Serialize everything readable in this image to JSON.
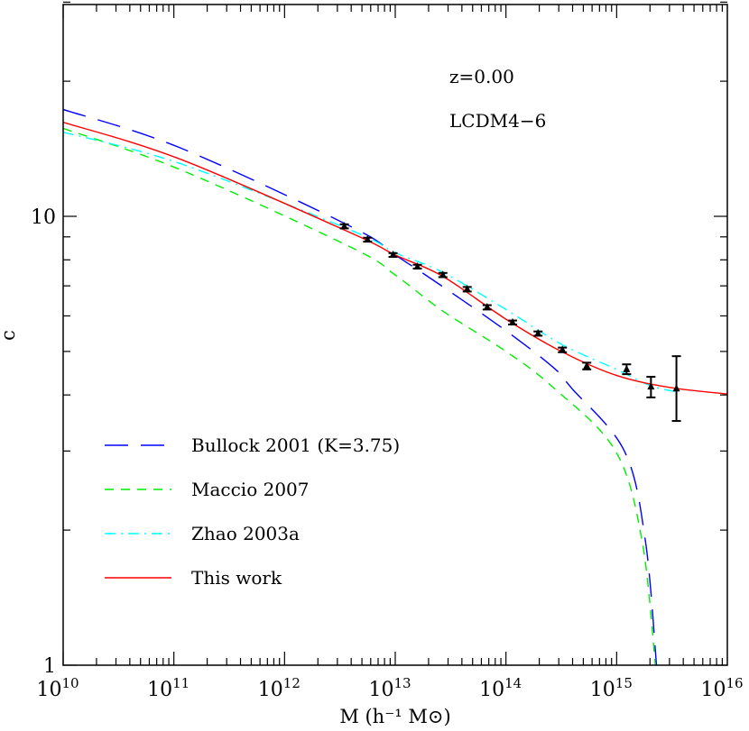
{
  "chart_data": {
    "type": "line",
    "title": "",
    "xlabel": "M (h⁻¹ M⊙)",
    "ylabel": "c",
    "xscale": "log",
    "yscale": "log",
    "xlim": [
      10000000000.0,
      1e+16
    ],
    "ylim": [
      1,
      30
    ],
    "grid": false,
    "legend_position": "bottom-left",
    "x_tick_labels": [
      {
        "value": 10000000000.0,
        "base": "10",
        "exp": "10"
      },
      {
        "value": 100000000000.0,
        "base": "10",
        "exp": "11"
      },
      {
        "value": 1000000000000.0,
        "base": "10",
        "exp": "12"
      },
      {
        "value": 10000000000000.0,
        "base": "10",
        "exp": "13"
      },
      {
        "value": 100000000000000.0,
        "base": "10",
        "exp": "14"
      },
      {
        "value": 1000000000000000.0,
        "base": "10",
        "exp": "15"
      },
      {
        "value": 1e+16,
        "base": "10",
        "exp": "16"
      }
    ],
    "y_tick_labels": [
      {
        "value": 1,
        "label": "1"
      },
      {
        "value": 10,
        "label": "10"
      }
    ],
    "annotations": [
      "z=0.00",
      "LCDM4−6"
    ],
    "series": [
      {
        "name": "Bullock 2001 (K=3.75)",
        "color": "#0000ff",
        "style": "long-dash",
        "log10_M": [
          10.0,
          11.06,
          12.61,
          13.0,
          13.43,
          14.0,
          14.43,
          14.59,
          15.07,
          15.26,
          15.36
        ],
        "c": [
          17.3,
          14.2,
          9.46,
          8.2,
          6.97,
          5.56,
          4.6,
          4.15,
          3.0,
          1.89,
          1.0
        ]
      },
      {
        "name": "Maccio 2007",
        "color": "#00ee00",
        "style": "short-dash",
        "log10_M": [
          10.0,
          11.06,
          12.61,
          13.0,
          13.43,
          14.0,
          14.43,
          14.99,
          15.23,
          15.35
        ],
        "c": [
          15.7,
          12.7,
          8.51,
          7.4,
          6.15,
          5.0,
          4.15,
          3.0,
          1.89,
          1.0
        ]
      },
      {
        "name": "Zhao 2003a",
        "color": "#00ffff",
        "style": "dash-dot",
        "log10_M": [
          10.0,
          11.06,
          12.61,
          13.0,
          13.43,
          14.0,
          14.5,
          15.0,
          15.3,
          15.55
        ],
        "c": [
          15.4,
          13.1,
          9.29,
          8.3,
          7.5,
          6.2,
          5.19,
          4.56,
          4.2,
          4.06
        ]
      },
      {
        "name": "This work",
        "color": "#ff0000",
        "style": "solid",
        "log10_M": [
          10.0,
          11.06,
          12.61,
          13.0,
          13.43,
          14.0,
          14.5,
          15.0,
          15.5,
          16.0
        ],
        "c": [
          16.2,
          13.4,
          9.16,
          8.2,
          7.35,
          5.9,
          5.0,
          4.42,
          4.15,
          4.02
        ]
      }
    ],
    "points": {
      "color": "#000000",
      "marker": "triangle",
      "log10_M": [
        12.54,
        12.75,
        12.98,
        13.2,
        13.43,
        13.65,
        13.83,
        14.06,
        14.29,
        14.51,
        14.73,
        15.09,
        15.31,
        15.54
      ],
      "c": [
        9.5,
        8.87,
        8.2,
        7.72,
        7.4,
        6.88,
        6.27,
        5.8,
        5.48,
        5.04,
        4.64,
        4.56,
        4.17,
        4.13
      ],
      "c_low": [
        9.4,
        8.78,
        8.12,
        7.65,
        7.32,
        6.8,
        6.2,
        5.74,
        5.42,
        4.98,
        4.56,
        4.45,
        3.95,
        3.5
      ],
      "c_high": [
        9.6,
        8.96,
        8.28,
        7.8,
        7.48,
        6.96,
        6.34,
        5.86,
        5.54,
        5.1,
        4.72,
        4.68,
        4.39,
        4.88
      ]
    }
  }
}
